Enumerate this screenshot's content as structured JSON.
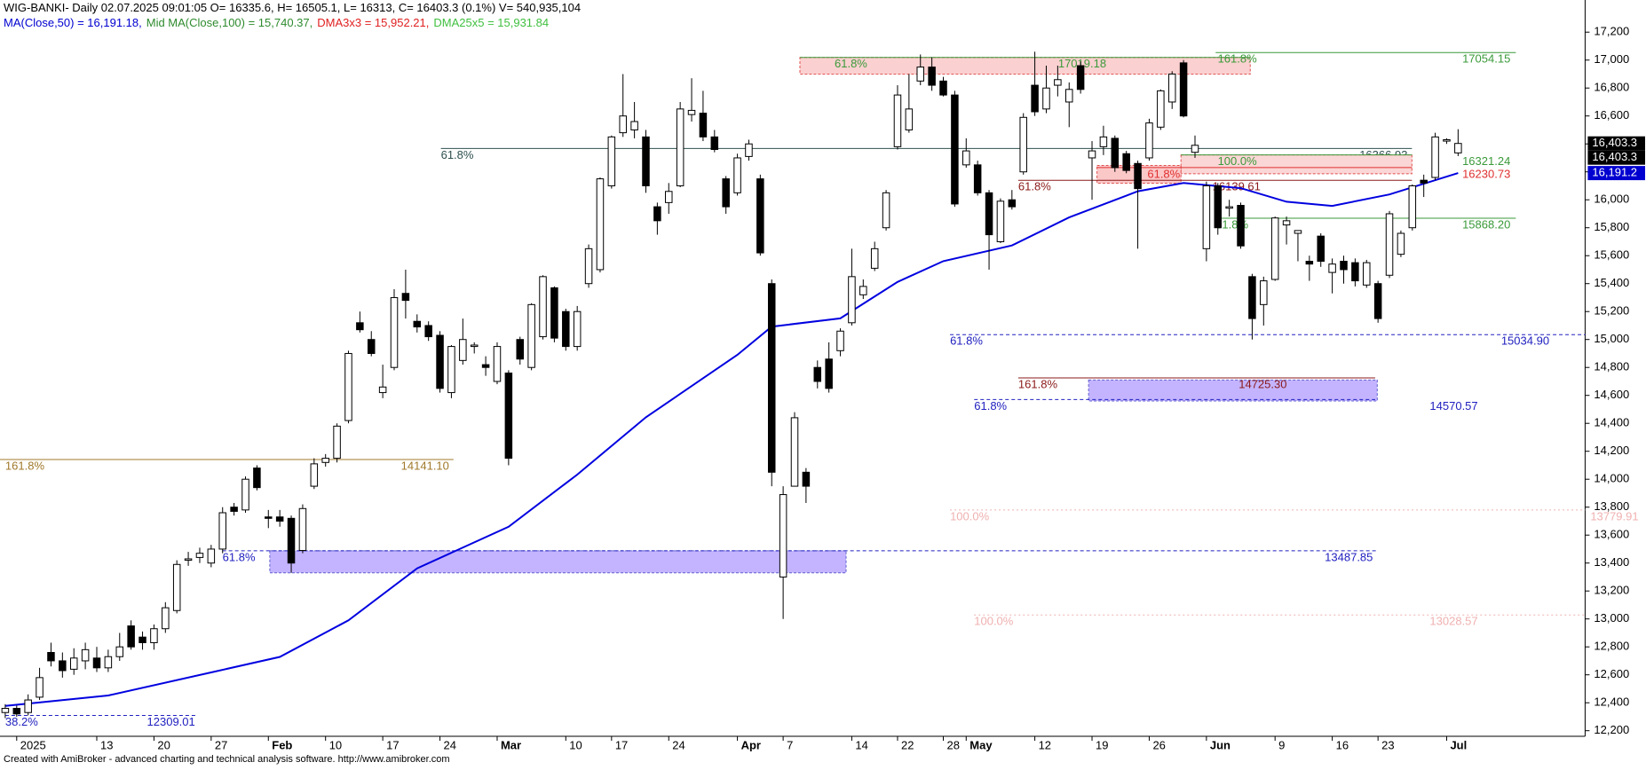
{
  "chart_data": {
    "type": "candlestick",
    "title": "WIG-BANKI- Daily 02.07.2025 09:01:05 O= 16335.6, H= 16505.1, L= 16313, C= 16403.3 (0.1%) V= 540,935,104",
    "indicators": [
      {
        "text": "MA(Close,50) = 16,191.18,",
        "color": "#0000d0"
      },
      {
        "text": "Mid MA(Close,100) = 15,740.37,",
        "color": "#2e8b2e"
      },
      {
        "text": "DMA3x3 = 15,952.21,",
        "color": "#e02020"
      },
      {
        "text": "DMA25x5 = 15,931.84",
        "color": "#40c040"
      }
    ],
    "footer": "Created with AmiBroker - advanced charting and technical analysis software. http://www.amibroker.com",
    "categories": [
      null,
      "2025",
      null,
      null,
      null,
      null,
      null,
      null,
      "13",
      null,
      null,
      null,
      null,
      "20",
      null,
      null,
      null,
      null,
      "27",
      null,
      null,
      null,
      null,
      "Feb",
      null,
      null,
      null,
      null,
      "10",
      null,
      null,
      null,
      null,
      "17",
      null,
      null,
      null,
      null,
      "24",
      null,
      null,
      null,
      null,
      "Mar",
      null,
      null,
      null,
      null,
      null,
      "10",
      null,
      null,
      null,
      "17",
      null,
      null,
      null,
      null,
      "24",
      null,
      null,
      null,
      null,
      null,
      "Apr",
      null,
      null,
      null,
      "7",
      null,
      null,
      null,
      null,
      null,
      "14",
      null,
      null,
      null,
      "22",
      null,
      null,
      null,
      "28",
      null,
      "May",
      null,
      null,
      null,
      null,
      null,
      "12",
      null,
      null,
      null,
      null,
      "19",
      null,
      null,
      null,
      null,
      "26",
      null,
      null,
      null,
      null,
      "Jun",
      null,
      null,
      null,
      null,
      null,
      "9",
      null,
      null,
      null,
      null,
      "16",
      null,
      null,
      null,
      "23",
      null,
      null,
      null,
      null,
      null,
      "Jul",
      null
    ],
    "ohlc": [
      [
        12330,
        12390,
        12290,
        12360
      ],
      [
        12360,
        12380,
        12300,
        12320
      ],
      [
        12330,
        12460,
        12310,
        12420
      ],
      [
        12440,
        12650,
        12420,
        12580
      ],
      [
        12760,
        12830,
        12660,
        12700
      ],
      [
        12700,
        12760,
        12580,
        12630
      ],
      [
        12640,
        12790,
        12600,
        12720
      ],
      [
        12700,
        12830,
        12640,
        12780
      ],
      [
        12720,
        12800,
        12620,
        12650
      ],
      [
        12650,
        12780,
        12620,
        12730
      ],
      [
        12730,
        12900,
        12700,
        12800
      ],
      [
        12950,
        12990,
        12780,
        12800
      ],
      [
        12870,
        12910,
        12780,
        12830
      ],
      [
        12830,
        12960,
        12780,
        12930
      ],
      [
        12930,
        13120,
        12900,
        13080
      ],
      [
        13060,
        13420,
        13040,
        13390
      ],
      [
        13420,
        13480,
        13380,
        13430
      ],
      [
        13440,
        13510,
        13400,
        13470
      ],
      [
        13400,
        13530,
        13370,
        13500
      ],
      [
        13500,
        13800,
        13470,
        13760
      ],
      [
        13800,
        13830,
        13740,
        13770
      ],
      [
        13780,
        14020,
        13760,
        14000
      ],
      [
        14080,
        14100,
        13920,
        13940
      ],
      [
        13730,
        13780,
        13650,
        13720
      ],
      [
        13730,
        13780,
        13660,
        13700
      ],
      [
        13720,
        13740,
        13330,
        13400
      ],
      [
        13490,
        13820,
        13470,
        13790
      ],
      [
        13950,
        14150,
        13930,
        14110
      ],
      [
        14120,
        14180,
        14090,
        14150
      ],
      [
        14150,
        14400,
        14120,
        14380
      ],
      [
        14420,
        14920,
        14400,
        14900
      ],
      [
        15120,
        15200,
        15050,
        15070
      ],
      [
        15000,
        15060,
        14880,
        14900
      ],
      [
        14620,
        14820,
        14580,
        14660
      ],
      [
        14800,
        15360,
        14780,
        15300
      ],
      [
        15330,
        15500,
        15150,
        15280
      ],
      [
        15130,
        15180,
        15050,
        15090
      ],
      [
        15100,
        15130,
        14990,
        15020
      ],
      [
        15030,
        15060,
        14620,
        14650
      ],
      [
        14620,
        14960,
        14580,
        14950
      ],
      [
        14850,
        15150,
        14820,
        15000
      ],
      [
        14950,
        14980,
        14900,
        14960
      ],
      [
        14820,
        14880,
        14740,
        14800
      ],
      [
        14700,
        14980,
        14680,
        14950
      ],
      [
        14760,
        14780,
        14100,
        14150
      ],
      [
        15000,
        15020,
        14820,
        14860
      ],
      [
        14800,
        15260,
        14780,
        15250
      ],
      [
        15020,
        15460,
        15000,
        15450
      ],
      [
        15370,
        15380,
        14980,
        15010
      ],
      [
        15200,
        15220,
        14920,
        14950
      ],
      [
        14950,
        15240,
        14920,
        15200
      ],
      [
        15400,
        15680,
        15370,
        15650
      ],
      [
        15500,
        16160,
        15480,
        16150
      ],
      [
        16100,
        16460,
        16080,
        16450
      ],
      [
        16480,
        16900,
        16450,
        16600
      ],
      [
        16500,
        16700,
        16440,
        16560
      ],
      [
        16450,
        16500,
        16050,
        16100
      ],
      [
        15950,
        15980,
        15750,
        15850
      ],
      [
        15980,
        16120,
        15900,
        16060
      ],
      [
        16100,
        16700,
        16090,
        16650
      ],
      [
        16610,
        16870,
        16560,
        16640
      ],
      [
        16620,
        16780,
        16420,
        16450
      ],
      [
        16450,
        16500,
        16340,
        16360
      ],
      [
        16150,
        16170,
        15900,
        15950
      ],
      [
        16050,
        16330,
        16030,
        16300
      ],
      [
        16310,
        16430,
        16280,
        16400
      ],
      [
        16150,
        16180,
        15600,
        15620
      ],
      [
        15400,
        15430,
        13950,
        14050
      ],
      [
        13300,
        13950,
        13000,
        13890
      ],
      [
        13950,
        14480,
        13950,
        14440
      ],
      [
        14050,
        14080,
        13830,
        13950
      ],
      [
        14800,
        14850,
        14650,
        14700
      ],
      [
        14860,
        14980,
        14620,
        14650
      ],
      [
        14920,
        15080,
        14880,
        15060
      ],
      [
        15120,
        15650,
        15100,
        15450
      ],
      [
        15320,
        15430,
        15290,
        15380
      ],
      [
        15510,
        15700,
        15490,
        15650
      ],
      [
        15800,
        16070,
        15780,
        16050
      ],
      [
        16380,
        16820,
        16360,
        16750
      ],
      [
        16500,
        16900,
        16480,
        16650
      ],
      [
        16850,
        17040,
        16820,
        16950
      ],
      [
        16950,
        17020,
        16780,
        16820
      ],
      [
        16850,
        16880,
        16740,
        16750
      ],
      [
        16750,
        16780,
        15950,
        15970
      ],
      [
        16250,
        16440,
        16230,
        16350
      ],
      [
        16250,
        16280,
        16030,
        16050
      ],
      [
        16050,
        16070,
        15500,
        15750
      ],
      [
        15700,
        16010,
        15690,
        15990
      ],
      [
        16000,
        16070,
        15930,
        15950
      ],
      [
        16200,
        16620,
        16180,
        16590
      ],
      [
        16820,
        17060,
        16600,
        16630
      ],
      [
        16650,
        16960,
        16620,
        16800
      ],
      [
        16820,
        16960,
        16740,
        16860
      ],
      [
        16700,
        16840,
        16520,
        16790
      ],
      [
        16960,
        16990,
        16760,
        16790
      ],
      [
        16300,
        16420,
        16000,
        16350
      ],
      [
        16380,
        16530,
        16320,
        16450
      ],
      [
        16440,
        16460,
        16200,
        16230
      ],
      [
        16330,
        16350,
        16190,
        16210
      ],
      [
        16260,
        16280,
        15650,
        16080
      ],
      [
        16300,
        16580,
        16280,
        16550
      ],
      [
        16520,
        16790,
        16500,
        16780
      ],
      [
        16700,
        16920,
        16650,
        16900
      ],
      [
        16980,
        17000,
        16590,
        16600
      ],
      [
        16340,
        16460,
        16300,
        16390
      ],
      [
        15650,
        16130,
        15560,
        16100
      ],
      [
        16100,
        16120,
        15750,
        15800
      ],
      [
        15940,
        16000,
        15880,
        15950
      ],
      [
        15960,
        15980,
        15650,
        15670
      ],
      [
        15450,
        15470,
        15000,
        15150
      ],
      [
        15250,
        15450,
        15100,
        15420
      ],
      [
        15430,
        15880,
        15420,
        15870
      ],
      [
        15820,
        15880,
        15680,
        15850
      ],
      [
        15760,
        15780,
        15560,
        15780
      ],
      [
        15560,
        15600,
        15420,
        15540
      ],
      [
        15740,
        15760,
        15520,
        15560
      ],
      [
        15480,
        15580,
        15330,
        15540
      ],
      [
        15560,
        15600,
        15400,
        15500
      ],
      [
        15550,
        15580,
        15380,
        15420
      ],
      [
        15390,
        15570,
        15370,
        15550
      ],
      [
        15400,
        15420,
        15120,
        15150
      ],
      [
        15460,
        15920,
        15440,
        15900
      ],
      [
        15610,
        15780,
        15590,
        15760
      ],
      [
        15800,
        16110,
        15780,
        16100
      ],
      [
        16140,
        16180,
        16020,
        16120
      ],
      [
        16160,
        16480,
        16140,
        16450
      ],
      [
        16420,
        16440,
        16400,
        16430
      ],
      [
        16335.6,
        16505.1,
        16313,
        16403.3
      ]
    ],
    "ma": {
      "color": "#0000e0",
      "x": [
        0,
        9,
        18,
        24,
        30,
        36,
        44,
        50,
        56,
        64,
        67,
        73,
        78,
        82,
        88,
        93,
        99,
        103,
        108,
        112,
        116,
        121,
        127
      ],
      "values": [
        12378,
        12452,
        12617,
        12728,
        12990,
        13362,
        13660,
        14033,
        14443,
        14890,
        15092,
        15151,
        15412,
        15561,
        15673,
        15874,
        16061,
        16120,
        16083,
        15986,
        15956,
        16038,
        16191.18
      ]
    },
    "levels": [
      {
        "pct": "61.8%",
        "value": 17019.18,
        "label": "17019.18",
        "color": "#3a9a3a",
        "style": "solid"
      },
      {
        "pct": "161.8%",
        "value": 17054.15,
        "label": "17054.15",
        "color": "#3a9a3a",
        "style": "solid"
      },
      {
        "pct": "61.8%",
        "value": 16366.93,
        "label": "16366.93",
        "color": "#2f4f4f",
        "style": "solid"
      },
      {
        "pct": "100.0%",
        "value": 16321.24,
        "label": "16321.24",
        "color": "#3a9a3a",
        "style": "solid"
      },
      {
        "pct": "61.8%",
        "value": 16230.73,
        "label": "16230.73",
        "color": "#e03030",
        "style": "solid"
      },
      {
        "pct": "61.8%",
        "value": 16139.61,
        "label": "16139.61",
        "color": "#8b1a1a",
        "style": "solid"
      },
      {
        "pct": "61.8%",
        "value": 15868.2,
        "label": "15868.20",
        "color": "#3a9a3a",
        "style": "solid"
      },
      {
        "pct": "61.8%",
        "value": 15034.9,
        "label": "15034.90",
        "color": "#2020c0",
        "style": "dashed"
      },
      {
        "pct": "161.8%",
        "value": 14725.3,
        "label": "14725.30",
        "color": "#8b1a1a",
        "style": "solid"
      },
      {
        "pct": "61.8%",
        "value": 14570.57,
        "label": "14570.57",
        "color": "#2020c0",
        "style": "dashed"
      },
      {
        "pct": "161.8%",
        "value": 14141.1,
        "label": "14141.10",
        "color": "#a0782a",
        "style": "solid"
      },
      {
        "pct": "100.0%",
        "value": 13779.91,
        "label": "13779.91",
        "color": "#f0b0b0",
        "style": "dotted"
      },
      {
        "pct": "61.8%",
        "value": 13487.85,
        "label": "13487.85",
        "color": "#2020c0",
        "style": "dashed"
      },
      {
        "pct": "100.0%",
        "value": 13028.57,
        "label": "13028.57",
        "color": "#f0b0b0",
        "style": "dotted"
      },
      {
        "pct": "38.2%",
        "value": 12309.01,
        "label": "12309.01",
        "color": "#2020c0",
        "style": "dashed"
      }
    ],
    "last_labels": [
      {
        "value": 16403.3,
        "label": "16,403.3",
        "color": "#000000"
      },
      {
        "value": 16403.3,
        "label": "16,403.3",
        "color": "#000000"
      },
      {
        "value": 16191.2,
        "label": "16,191.2",
        "color": "#0000d0"
      }
    ],
    "ylim": [
      12160,
      17430
    ],
    "yticks": [
      {
        "value": 12200,
        "label": "12,200"
      },
      {
        "value": 12400,
        "label": "12,400"
      },
      {
        "value": 12600,
        "label": "12,600"
      },
      {
        "value": 12800,
        "label": "12,800"
      },
      {
        "value": 13000,
        "label": "13,000"
      },
      {
        "value": 13200,
        "label": "13,200"
      },
      {
        "value": 13400,
        "label": "13,400"
      },
      {
        "value": 13600,
        "label": "13,600"
      },
      {
        "value": 13800,
        "label": "13,800"
      },
      {
        "value": 14000,
        "label": "14,000"
      },
      {
        "value": 14200,
        "label": "14,200"
      },
      {
        "value": 14400,
        "label": "14,400"
      },
      {
        "value": 14600,
        "label": "14,600"
      },
      {
        "value": 14800,
        "label": "14,800"
      },
      {
        "value": 15000,
        "label": "15,000"
      },
      {
        "value": 15200,
        "label": "15,200"
      },
      {
        "value": 15400,
        "label": "15,400"
      },
      {
        "value": 15600,
        "label": "15,600"
      },
      {
        "value": 15800,
        "label": "15,800"
      },
      {
        "value": 16000,
        "label": "16,000"
      },
      {
        "value": 16200,
        "label": "16,200"
      },
      {
        "value": 16400,
        "label": "16,400"
      },
      {
        "value": 16600,
        "label": "16,600"
      },
      {
        "value": 16800,
        "label": "16,800"
      },
      {
        "value": 17000,
        "label": "17,000"
      },
      {
        "value": 17200,
        "label": "17,200"
      }
    ],
    "grid": false
  }
}
